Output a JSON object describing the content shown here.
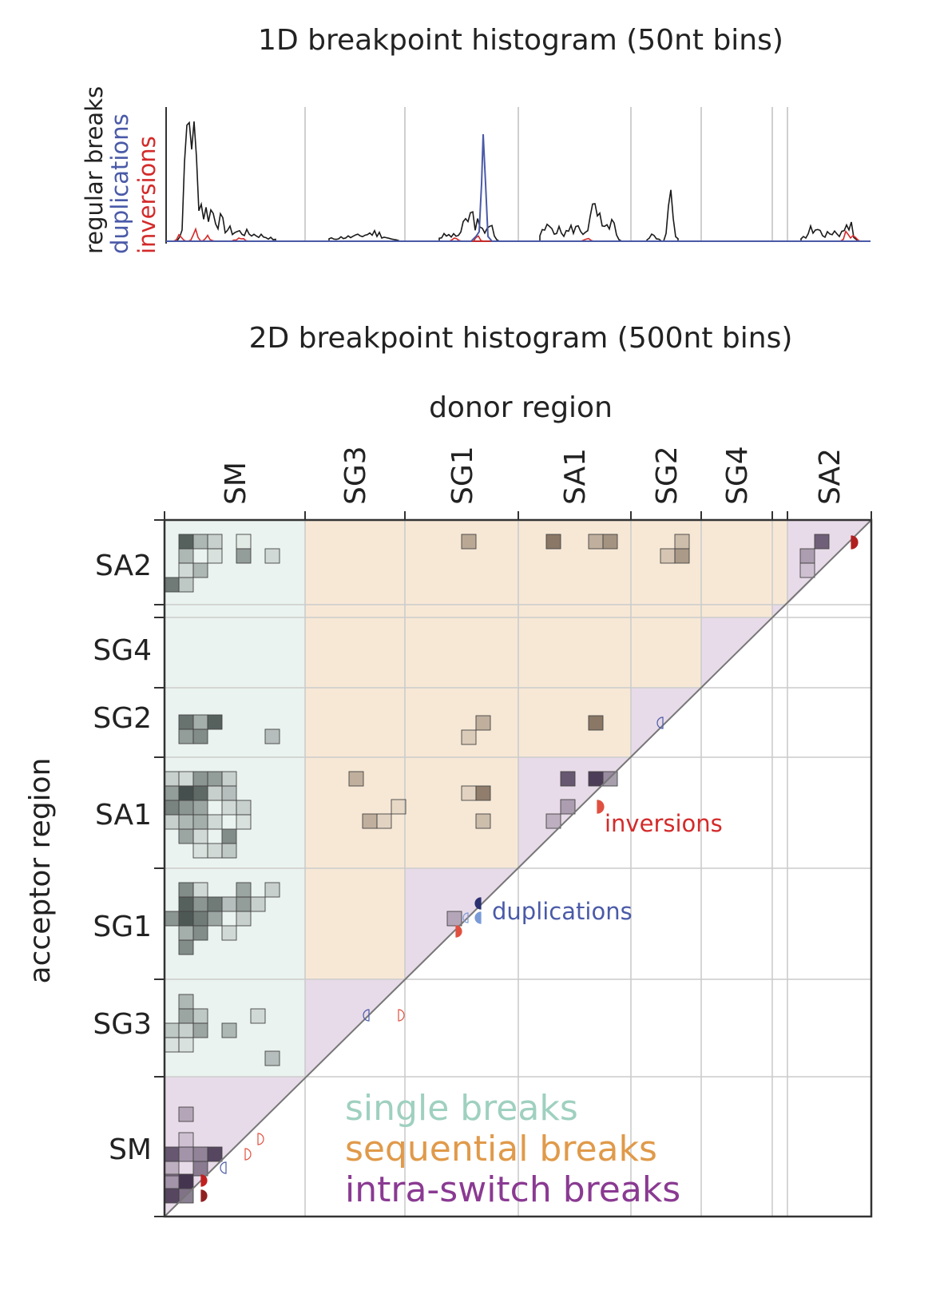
{
  "chart_data": [
    {
      "type": "line",
      "title": "1D breakpoint histogram (50nt bins)",
      "y_labels": [
        "regular breaks",
        "duplications",
        "inversions"
      ],
      "colors": {
        "regular breaks": "#1a1a1a",
        "duplications": "#4a5aa8",
        "inversions": "#d42a2a"
      },
      "regions": [
        "SM",
        "SG3",
        "SG1",
        "SA1",
        "SG2",
        "SG4",
        "SA2"
      ],
      "grid": true,
      "series": [
        {
          "name": "regular breaks",
          "note": "peaks in SM, SG1, SA1, SG2, SA2"
        },
        {
          "name": "duplications",
          "note": "sharp peak in SG1"
        },
        {
          "name": "inversions",
          "note": "small peaks in SM, SA1, SA2"
        }
      ]
    },
    {
      "type": "heatmap",
      "title": "2D breakpoint histogram (500nt bins)",
      "xlabel": "donor region",
      "ylabel": "acceptor region",
      "x_regions": [
        "SM",
        "SG3",
        "SG1",
        "SA1",
        "SG2",
        "SG4",
        "SA2"
      ],
      "y_regions": [
        "SA2",
        "SG4",
        "SG2",
        "SA1",
        "SG1",
        "SG3",
        "SM"
      ],
      "annotations": [
        "inversions",
        "duplications"
      ],
      "legend": [
        {
          "label": "single breaks",
          "color": "#9fd0c0"
        },
        {
          "label": "sequential breaks",
          "color": "#e09a4a"
        },
        {
          "label": "intra-switch breaks",
          "color": "#8a3a92"
        }
      ],
      "fill_colors": {
        "single": "#eaf3ef",
        "sequential": "#f7e8d6",
        "intra": "#e8dbe9"
      }
    }
  ]
}
